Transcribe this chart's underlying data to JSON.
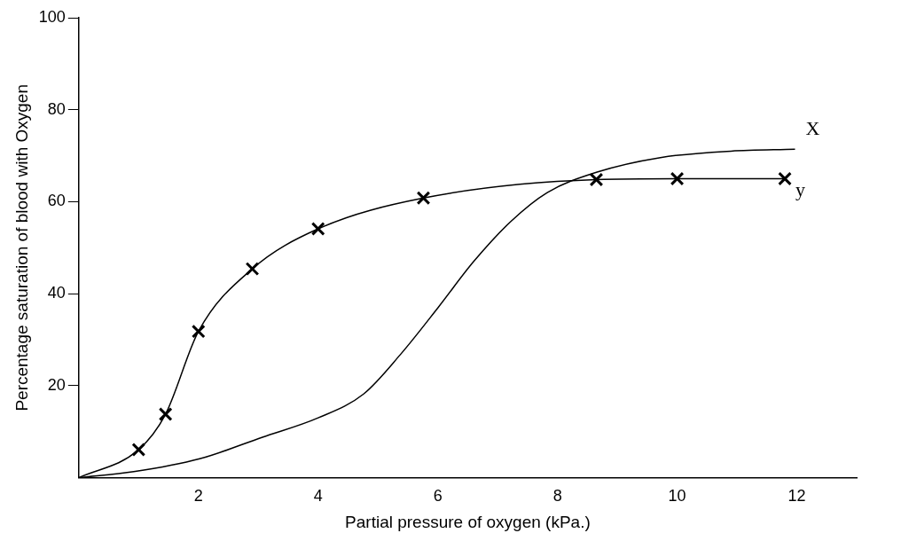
{
  "chart_data": {
    "type": "line",
    "xlabel": "Partial pressure of oxygen (kPa.)",
    "ylabel": "Percentage saturation of blood with Oxygen",
    "xlim": [
      0,
      13
    ],
    "xticks": [
      2,
      4,
      6,
      8,
      10,
      12
    ],
    "ylim": [
      0,
      100
    ],
    "yticks": [
      20,
      40,
      60,
      80,
      100
    ],
    "grid": false,
    "legend": false,
    "series": [
      {
        "name": "X",
        "type": "line",
        "color": "#000000",
        "marker": "none",
        "x": [
          0,
          0.92,
          2.02,
          3.07,
          4,
          4.76,
          5.37,
          6,
          6.6,
          7.22,
          7.83,
          8.65,
          9.72,
          10.9,
          11.97
        ],
        "values": [
          0,
          1.3,
          4.1,
          8.8,
          13,
          18.2,
          26.7,
          36.9,
          47,
          55.7,
          62,
          66.4,
          69.6,
          71,
          71.4
        ]
      },
      {
        "name": "y",
        "type": "line",
        "color": "#000000",
        "marker": "none",
        "x": [
          0,
          1,
          1.45,
          2,
          2.9,
          4,
          5.76,
          8.65,
          10,
          11.8
        ],
        "values": [
          0,
          6.1,
          13.8,
          31.8,
          45.4,
          54.1,
          60.8,
          64.8,
          65,
          65
        ]
      },
      {
        "type": "scatter",
        "color": "#000000",
        "marker": "cross",
        "x": [
          1,
          1.45,
          2,
          2.9,
          4,
          5.76,
          8.65,
          10,
          11.8
        ],
        "values": [
          6.1,
          13.8,
          31.8,
          45.4,
          54.1,
          60.8,
          64.8,
          65,
          65
        ]
      }
    ]
  }
}
